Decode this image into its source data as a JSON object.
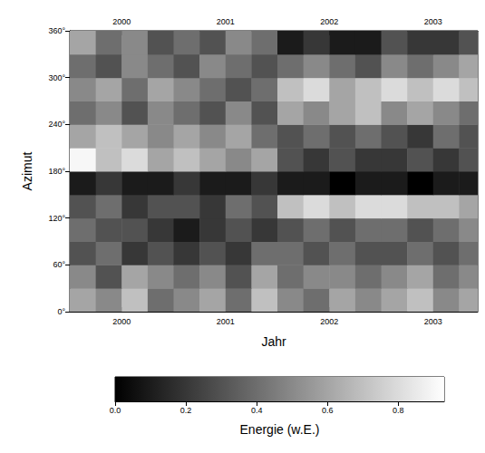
{
  "chart_data": {
    "type": "heatmap",
    "xlabel": "Jahr",
    "ylabel": "Azimut",
    "xlim": [
      2000,
      2003.93
    ],
    "xticks": [
      {
        "value": 2000.5,
        "label": "2000"
      },
      {
        "value": 2001.5,
        "label": "2001"
      },
      {
        "value": 2002.5,
        "label": "2002"
      },
      {
        "value": 2003.5,
        "label": "2003"
      }
    ],
    "ylim": [
      0,
      360
    ],
    "yticks": [
      {
        "value": 0,
        "label": "0°"
      },
      {
        "value": 60,
        "label": "60°"
      },
      {
        "value": 120,
        "label": "120°"
      },
      {
        "value": 180,
        "label": "180°"
      },
      {
        "value": 240,
        "label": "240°"
      },
      {
        "value": 300,
        "label": "300°"
      },
      {
        "value": 360,
        "label": "360°"
      }
    ],
    "x_edges": [
      2000,
      2000.25,
      2000.5,
      2000.75,
      2001,
      2001.25,
      2001.5,
      2001.75,
      2002,
      2002.25,
      2002.5,
      2002.75,
      2003,
      2003.25,
      2003.5,
      2003.75,
      2003.93
    ],
    "y_edges": [
      0,
      30,
      60,
      90,
      120,
      150,
      180,
      210,
      240,
      270,
      300,
      330,
      360
    ],
    "cells": [
      [
        0.6,
        0.5,
        0.7,
        0.4,
        0.5,
        0.6,
        0.4,
        0.7,
        0.5,
        0.4,
        0.6,
        0.5,
        0.6,
        0.7,
        0.5,
        0.6
      ],
      [
        0.5,
        0.3,
        0.6,
        0.5,
        0.4,
        0.5,
        0.3,
        0.6,
        0.4,
        0.5,
        0.5,
        0.4,
        0.5,
        0.6,
        0.4,
        0.5
      ],
      [
        0.3,
        0.4,
        0.2,
        0.3,
        0.2,
        0.3,
        0.2,
        0.4,
        0.4,
        0.3,
        0.4,
        0.3,
        0.3,
        0.4,
        0.3,
        0.4
      ],
      [
        0.4,
        0.3,
        0.3,
        0.2,
        0.1,
        0.2,
        0.3,
        0.2,
        0.3,
        0.4,
        0.3,
        0.4,
        0.4,
        0.3,
        0.4,
        0.5
      ],
      [
        0.3,
        0.4,
        0.2,
        0.3,
        0.3,
        0.2,
        0.4,
        0.3,
        0.7,
        0.8,
        0.7,
        0.8,
        0.8,
        0.7,
        0.7,
        0.6
      ],
      [
        0.1,
        0.2,
        0.1,
        0.1,
        0.2,
        0.1,
        0.1,
        0.2,
        0.1,
        0.1,
        0.0,
        0.1,
        0.1,
        0.0,
        0.1,
        0.1
      ],
      [
        0.9,
        0.7,
        0.8,
        0.6,
        0.7,
        0.6,
        0.5,
        0.6,
        0.3,
        0.2,
        0.3,
        0.2,
        0.2,
        0.3,
        0.2,
        0.3
      ],
      [
        0.6,
        0.7,
        0.6,
        0.5,
        0.6,
        0.5,
        0.6,
        0.4,
        0.3,
        0.4,
        0.3,
        0.4,
        0.3,
        0.2,
        0.4,
        0.3
      ],
      [
        0.4,
        0.5,
        0.3,
        0.5,
        0.4,
        0.3,
        0.5,
        0.3,
        0.6,
        0.5,
        0.6,
        0.7,
        0.5,
        0.6,
        0.5,
        0.4
      ],
      [
        0.5,
        0.6,
        0.4,
        0.6,
        0.5,
        0.4,
        0.3,
        0.4,
        0.7,
        0.8,
        0.6,
        0.7,
        0.8,
        0.7,
        0.8,
        0.7
      ],
      [
        0.4,
        0.3,
        0.5,
        0.4,
        0.3,
        0.5,
        0.4,
        0.3,
        0.4,
        0.5,
        0.4,
        0.3,
        0.5,
        0.4,
        0.5,
        0.6
      ],
      [
        0.6,
        0.4,
        0.5,
        0.3,
        0.4,
        0.3,
        0.5,
        0.4,
        0.1,
        0.2,
        0.1,
        0.1,
        0.3,
        0.2,
        0.2,
        0.3
      ]
    ],
    "colorbar": {
      "label": "Energie (w.E.)",
      "range": [
        0,
        0.93
      ],
      "ticks": [
        {
          "value": 0,
          "label": "0.0"
        },
        {
          "value": 0.2,
          "label": "0.2"
        },
        {
          "value": 0.4,
          "label": "0.4"
        },
        {
          "value": 0.6,
          "label": "0.6"
        },
        {
          "value": 0.8,
          "label": "0.8"
        }
      ]
    }
  }
}
